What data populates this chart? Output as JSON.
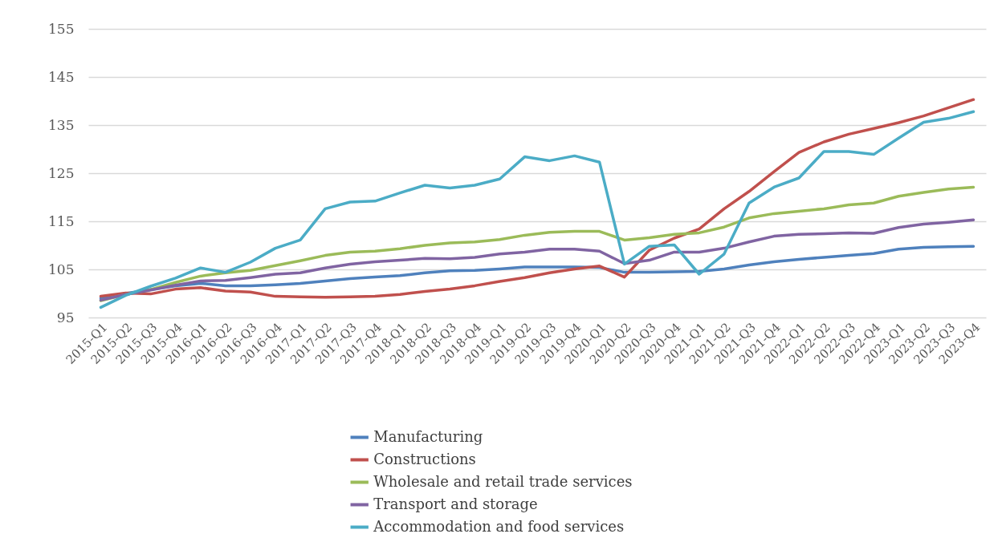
{
  "chart_data": {
    "type": "line",
    "categories": [
      "2015-Q1",
      "2015-Q2",
      "2015-Q3",
      "2015-Q4",
      "2016-Q1",
      "2016-Q2",
      "2016-Q3",
      "2016-Q4",
      "2017-Q1",
      "2017-Q2",
      "2017-Q3",
      "2017-Q4",
      "2018-Q1",
      "2018-Q2",
      "2018-Q3",
      "2018-Q4",
      "2019-Q1",
      "2019-Q2",
      "2019-Q3",
      "2019-Q4",
      "2020-Q1",
      "2020-Q2",
      "2020-Q3",
      "2020-Q4",
      "2021-Q1",
      "2021-Q2",
      "2021-Q3",
      "2021-Q4",
      "2022-Q1",
      "2022-Q2",
      "2022-Q3",
      "2022-Q4",
      "2023-Q1",
      "2023-Q2",
      "2023-Q3",
      "2023-Q4"
    ],
    "series": [
      {
        "name": "Manufacturing",
        "color": "#4f81bd",
        "values": [
          99.0,
          100.0,
          100.8,
          101.6,
          102.1,
          101.6,
          101.6,
          101.8,
          102.1,
          102.6,
          103.1,
          103.4,
          103.7,
          104.3,
          104.7,
          104.8,
          105.1,
          105.5,
          105.5,
          105.5,
          105.4,
          104.4,
          104.4,
          104.5,
          104.6,
          105.1,
          105.9,
          106.6,
          107.1,
          107.5,
          107.9,
          108.3,
          109.2,
          109.6,
          109.7,
          109.8
        ]
      },
      {
        "name": "Constructions",
        "color": "#c0504d",
        "values": [
          99.4,
          100.1,
          99.9,
          100.9,
          101.2,
          100.5,
          100.3,
          99.4,
          99.3,
          99.2,
          99.3,
          99.4,
          99.8,
          100.4,
          100.9,
          101.6,
          102.5,
          103.3,
          104.3,
          105.1,
          105.7,
          103.4,
          109.0,
          111.5,
          113.4,
          117.6,
          121.2,
          125.3,
          129.3,
          131.5,
          133.1,
          134.3,
          135.5,
          136.9,
          138.6,
          140.3
        ]
      },
      {
        "name": "Wholesale and retail trade services",
        "color": "#9bbb59",
        "values": [
          98.5,
          99.8,
          100.8,
          102.3,
          103.6,
          104.3,
          104.8,
          105.8,
          106.8,
          107.9,
          108.6,
          108.8,
          109.3,
          110.0,
          110.5,
          110.7,
          111.2,
          112.1,
          112.7,
          112.9,
          112.9,
          111.1,
          111.6,
          112.3,
          112.6,
          113.8,
          115.7,
          116.6,
          117.1,
          117.6,
          118.4,
          118.8,
          120.2,
          121.0,
          121.7,
          122.1
        ]
      },
      {
        "name": "Transport and storage",
        "color": "#8064a2",
        "values": [
          98.6,
          99.8,
          100.7,
          101.7,
          102.6,
          102.7,
          103.3,
          104.0,
          104.3,
          105.3,
          106.1,
          106.6,
          106.9,
          107.3,
          107.2,
          107.5,
          108.2,
          108.6,
          109.2,
          109.2,
          108.8,
          106.2,
          106.9,
          108.6,
          108.6,
          109.4,
          110.7,
          111.9,
          112.3,
          112.4,
          112.6,
          112.5,
          113.7,
          114.4,
          114.8,
          115.3
        ]
      },
      {
        "name": "Accommodation and food services",
        "color": "#4bacc6",
        "values": [
          97.1,
          99.6,
          101.5,
          103.2,
          105.3,
          104.4,
          106.5,
          109.4,
          111.1,
          117.6,
          119.0,
          119.2,
          120.9,
          122.5,
          121.9,
          122.5,
          123.8,
          128.4,
          127.6,
          128.6,
          127.3,
          106.1,
          109.8,
          110.1,
          104.0,
          108.2,
          118.8,
          122.1,
          124.0,
          129.5,
          129.5,
          128.9,
          132.3,
          135.6,
          136.4,
          137.8
        ]
      }
    ],
    "ylim": [
      95,
      155
    ],
    "yticks": [
      95,
      105,
      115,
      125,
      135,
      145,
      155
    ],
    "grid": "y",
    "legend": "bottom"
  }
}
